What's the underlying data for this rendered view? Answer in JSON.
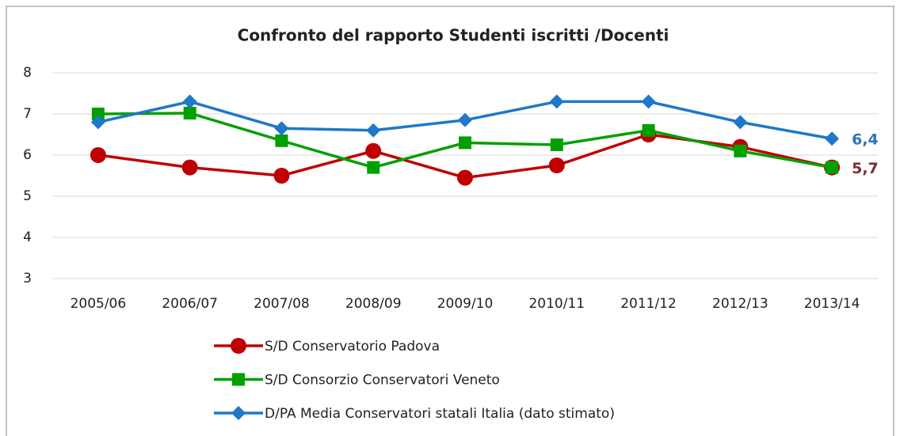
{
  "chart_data": {
    "type": "line",
    "title": "Confronto del rapporto Studenti iscritti /Docenti",
    "categories": [
      "2005/06",
      "2006/07",
      "2007/08",
      "2008/09",
      "2009/10",
      "2010/11",
      "2011/12",
      "2012/13",
      "2013/14"
    ],
    "series": [
      {
        "name": "S/D Conservatorio Padova",
        "color": "#c00000",
        "marker": "circle",
        "values": [
          6.0,
          5.7,
          5.5,
          6.1,
          5.45,
          5.75,
          6.5,
          6.2,
          5.7
        ],
        "value_labels": [
          null,
          null,
          null,
          null,
          null,
          null,
          null,
          null,
          "5,7"
        ],
        "label_color": "#7b2f2f"
      },
      {
        "name": "S/D Consorzio Conservatori Veneto",
        "color": "#00a000",
        "marker": "square",
        "values": [
          7.0,
          7.02,
          6.35,
          5.7,
          6.3,
          6.25,
          6.6,
          6.1,
          5.7
        ]
      },
      {
        "name": "D/PA Media Conservatori statali Italia (dato stimato)",
        "color": "#1f78c8",
        "marker": "diamond",
        "values": [
          6.8,
          7.3,
          6.65,
          6.6,
          6.85,
          7.3,
          7.3,
          6.8,
          6.4
        ],
        "value_labels": [
          null,
          null,
          null,
          null,
          null,
          null,
          null,
          null,
          "6,4"
        ],
        "label_color": "#2e75b6"
      }
    ],
    "ylim": [
      3,
      8
    ],
    "yticks": [
      3,
      4,
      5,
      6,
      7,
      8
    ],
    "grid": true
  }
}
